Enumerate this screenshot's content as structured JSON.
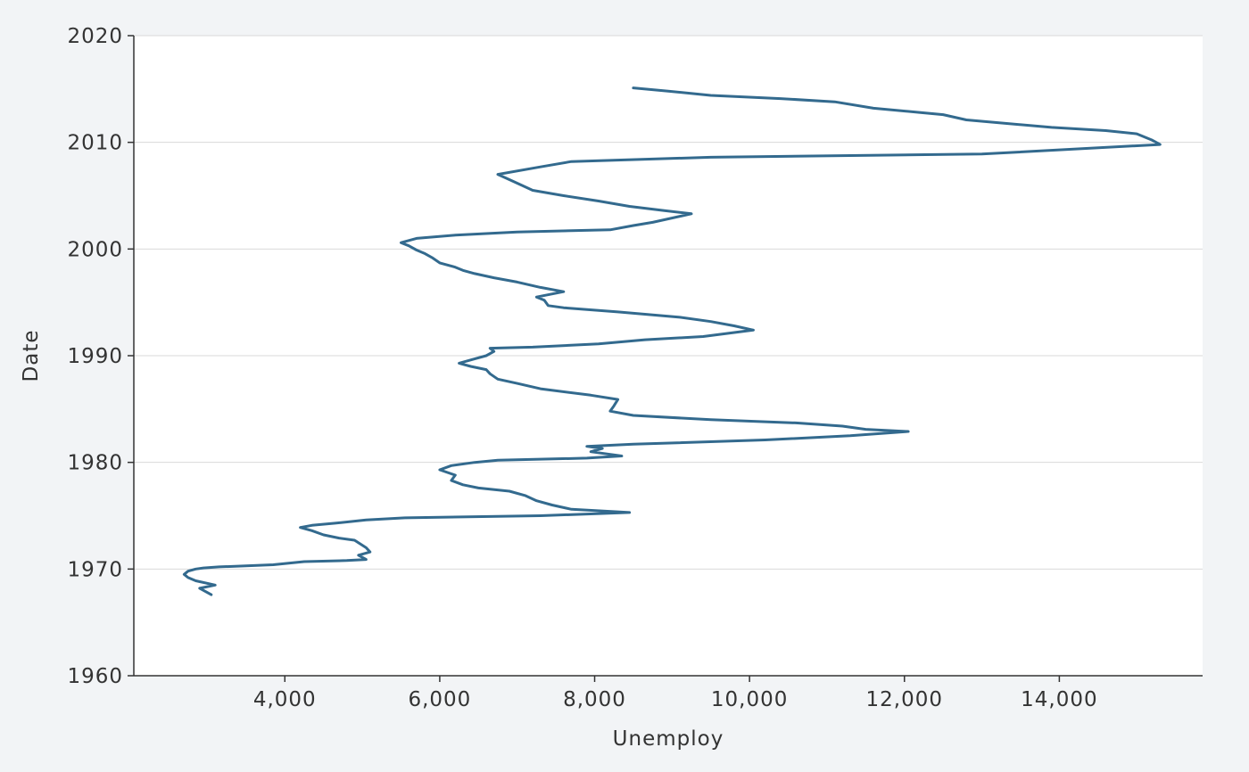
{
  "chart_data": {
    "type": "line",
    "title": "",
    "xlabel": "Unemploy",
    "ylabel": "Date",
    "xlim": [
      2050,
      15850
    ],
    "ylim": [
      1960,
      2020
    ],
    "x_ticks": [
      4000,
      6000,
      8000,
      10000,
      12000,
      14000
    ],
    "x_tick_labels": [
      "4,000",
      "6,000",
      "8,000",
      "10,000",
      "12,000",
      "14,000"
    ],
    "y_ticks": [
      1960,
      1970,
      1980,
      1990,
      2000,
      2010,
      2020
    ],
    "y_tick_labels": [
      "1960",
      "1970",
      "1980",
      "1990",
      "2000",
      "2010",
      "2020"
    ],
    "grid": "horizontal",
    "legend": "none",
    "colors": {
      "line": "#336a8e",
      "plot_bg": "#ffffff",
      "page_bg": "#f2f4f6",
      "grid": "#d9d9d9",
      "axis": "#333333"
    },
    "series": [
      {
        "x": [
          3050,
          2900,
          3100,
          2850,
          2750,
          2700,
          2750,
          2850,
          2950,
          3150,
          3850,
          4250,
          4800,
          5050,
          4950,
          5100,
          5050,
          4900,
          4700,
          4500,
          4350,
          4200,
          4350,
          4650,
          5050,
          5550,
          7300,
          8450,
          7700,
          7450,
          7250,
          7100,
          6900,
          6500,
          6300,
          6150,
          6200,
          6000,
          6150,
          6450,
          6750,
          7900,
          8350,
          7950,
          8100,
          7900,
          8500,
          10200,
          11300,
          12050,
          11500,
          11200,
          10600,
          9500,
          8500,
          8200,
          8250,
          8300,
          7950,
          7300,
          7000,
          6750,
          6650,
          6600,
          6400,
          6250,
          6450,
          6600,
          6700,
          6650,
          7200,
          8050,
          8650,
          9400,
          10050,
          9800,
          9500,
          9100,
          8300,
          7600,
          7400,
          7350,
          7250,
          7600,
          7300,
          7000,
          6700,
          6450,
          6300,
          6200,
          6000,
          5900,
          5800,
          5700,
          5600,
          5500,
          5700,
          6200,
          7000,
          8200,
          8500,
          8750,
          9250,
          8900,
          8450,
          8050,
          7600,
          7200,
          7050,
          6900,
          6750,
          7300,
          7700,
          9500,
          13000,
          15300,
          15200,
          15000,
          14600,
          13900,
          12800,
          12500,
          11600,
          11100,
          10400,
          9500,
          8950,
          8500
        ],
        "y": [
          1967.6,
          1968.2,
          1968.5,
          1968.9,
          1969.2,
          1969.5,
          1969.8,
          1970.0,
          1970.1,
          1970.2,
          1970.4,
          1970.7,
          1970.8,
          1970.9,
          1971.3,
          1971.6,
          1972.0,
          1972.7,
          1972.9,
          1973.2,
          1973.6,
          1973.9,
          1974.1,
          1974.3,
          1974.6,
          1974.8,
          1975.0,
          1975.3,
          1975.6,
          1976.0,
          1976.4,
          1976.9,
          1977.3,
          1977.6,
          1977.9,
          1978.3,
          1978.8,
          1979.3,
          1979.7,
          1980.0,
          1980.2,
          1980.4,
          1980.6,
          1981.0,
          1981.3,
          1981.5,
          1981.7,
          1982.1,
          1982.5,
          1982.9,
          1983.1,
          1983.4,
          1983.7,
          1984.0,
          1984.4,
          1984.8,
          1985.3,
          1985.9,
          1986.3,
          1986.9,
          1987.4,
          1987.8,
          1988.3,
          1988.7,
          1989.0,
          1989.3,
          1989.7,
          1990.0,
          1990.4,
          1990.7,
          1990.8,
          1991.1,
          1991.5,
          1991.8,
          1992.4,
          1992.8,
          1993.2,
          1993.6,
          1994.1,
          1994.5,
          1994.7,
          1995.2,
          1995.5,
          1996.0,
          1996.4,
          1996.9,
          1997.3,
          1997.7,
          1998.0,
          1998.3,
          1998.7,
          1999.2,
          1999.6,
          1999.9,
          2000.3,
          2000.6,
          2001.0,
          2001.3,
          2001.6,
          2001.8,
          2002.2,
          2002.5,
          2003.3,
          2003.6,
          2004.0,
          2004.5,
          2005.0,
          2005.5,
          2006.0,
          2006.5,
          2007.0,
          2007.7,
          2008.2,
          2008.6,
          2008.9,
          2009.8,
          2010.2,
          2010.8,
          2011.1,
          2011.4,
          2012.1,
          2012.6,
          2013.2,
          2013.8,
          2014.1,
          2014.4,
          2014.8,
          2015.1
        ]
      }
    ]
  }
}
